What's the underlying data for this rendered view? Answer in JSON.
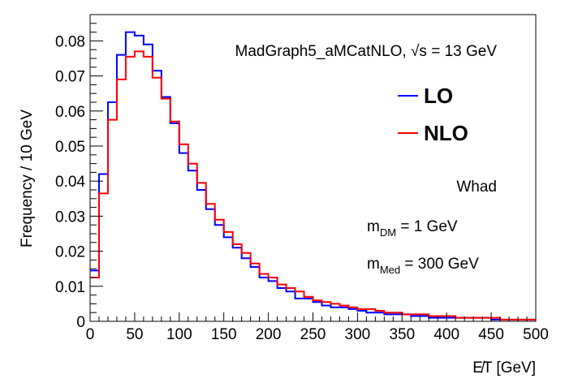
{
  "chart_data": {
    "type": "histogram",
    "xlabel": "E̸T [GeV]",
    "ylabel": "Frequency / 10 GeV",
    "xlim": [
      0,
      500
    ],
    "ylim": [
      0,
      0.0875
    ],
    "bin_width": 10,
    "x_ticks": [
      0,
      50,
      100,
      150,
      200,
      250,
      300,
      350,
      400,
      450,
      500
    ],
    "x_tick_labels": [
      "0",
      "50",
      "100",
      "150",
      "200",
      "250",
      "300",
      "350",
      "400",
      "450",
      "500"
    ],
    "y_ticks": [
      0,
      0.01,
      0.02,
      0.03,
      0.04,
      0.05,
      0.06,
      0.07,
      0.08
    ],
    "y_tick_labels": [
      "0",
      "0.01",
      "0.02",
      "0.03",
      "0.04",
      "0.05",
      "0.06",
      "0.07",
      "0.08"
    ],
    "grid": false,
    "legend_position": "top-right",
    "series": [
      {
        "name": "LO",
        "color": "#0000ff",
        "values": [
          0.0145,
          0.042,
          0.0625,
          0.076,
          0.0825,
          0.0815,
          0.079,
          0.0715,
          0.064,
          0.0565,
          0.048,
          0.043,
          0.0375,
          0.032,
          0.0275,
          0.024,
          0.021,
          0.018,
          0.0155,
          0.0125,
          0.0115,
          0.0095,
          0.0085,
          0.0065,
          0.0065,
          0.0055,
          0.0045,
          0.004,
          0.004,
          0.0035,
          0.003,
          0.0025,
          0.0025,
          0.002,
          0.002,
          0.002,
          0.0015,
          0.0015,
          0.001,
          0.001,
          0.001,
          0.001,
          0.001,
          0.001,
          0.001,
          0.0005,
          0.0005,
          0.0005,
          0.0005,
          0.0005
        ]
      },
      {
        "name": "NLO",
        "color": "#ff0000",
        "values": [
          0.0125,
          0.0365,
          0.0575,
          0.069,
          0.0755,
          0.077,
          0.0755,
          0.0695,
          0.0635,
          0.057,
          0.0505,
          0.045,
          0.0395,
          0.0335,
          0.029,
          0.0255,
          0.022,
          0.0195,
          0.0165,
          0.0135,
          0.0125,
          0.0105,
          0.0095,
          0.0085,
          0.007,
          0.006,
          0.0055,
          0.005,
          0.0045,
          0.004,
          0.0035,
          0.0035,
          0.003,
          0.0025,
          0.0025,
          0.002,
          0.002,
          0.002,
          0.0015,
          0.0015,
          0.0015,
          0.001,
          0.001,
          0.001,
          0.001,
          0.001,
          0.0005,
          0.0005,
          0.0005,
          0.0005
        ]
      }
    ],
    "annotations": {
      "generator": "MadGraph5_aMCatNLO, √s = 13 GeV",
      "process": "Whad",
      "mass_dm_label": "m",
      "mass_dm_sub": "DM",
      "mass_dm_value": " = 1 GeV",
      "mass_med_label": "m",
      "mass_med_sub": "Med",
      "mass_med_value": " = 300 GeV"
    }
  }
}
